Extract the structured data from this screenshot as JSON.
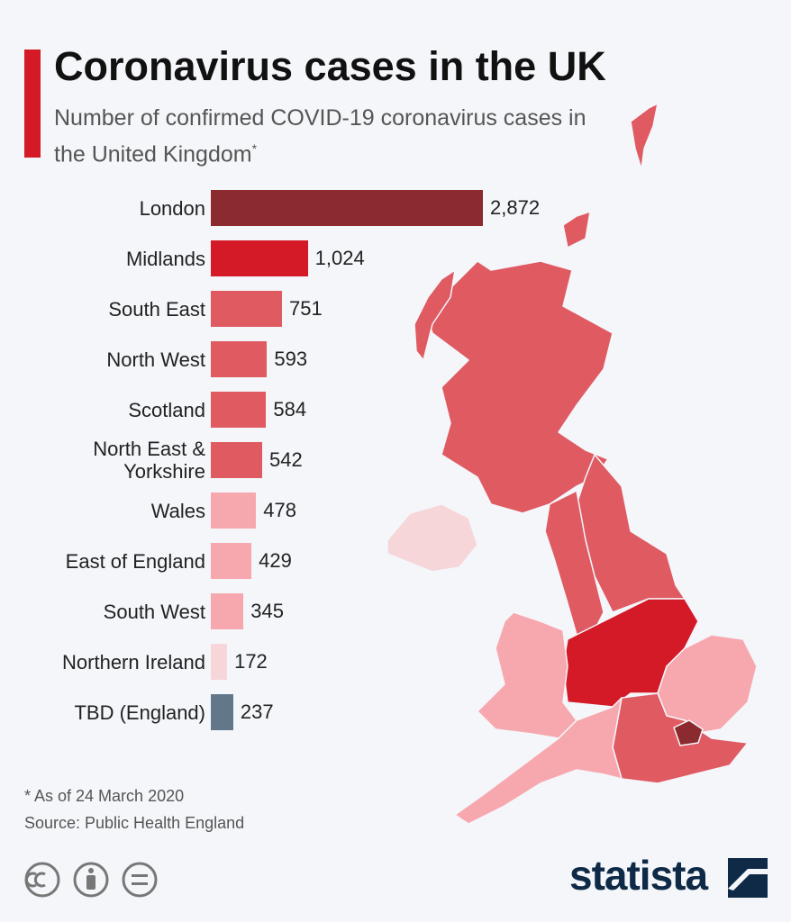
{
  "chart_data": {
    "type": "bar",
    "title": "Coronavirus cases in the UK",
    "subtitle": "Number of confirmed COVID-19 coronavirus cases in the United Kingdom",
    "subtitle_note": "*",
    "categories": [
      "London",
      "Midlands",
      "South East",
      "North West",
      "Scotland",
      "North East & Yorkshire",
      "Wales",
      "East of England",
      "South West",
      "Northern Ireland",
      "TBD (England)"
    ],
    "values": [
      2872,
      1024,
      751,
      593,
      584,
      542,
      478,
      429,
      345,
      172,
      237
    ],
    "value_labels": [
      "2,872",
      "1,024",
      "751",
      "593",
      "584",
      "542",
      "478",
      "429",
      "345",
      "172",
      "237"
    ],
    "colors": [
      "#8b2a2f",
      "#d41a27",
      "#e05a62",
      "#e05a62",
      "#e05a62",
      "#e05a62",
      "#f7a8ae",
      "#f7a8ae",
      "#f7a8ae",
      "#f6d6d9",
      "#62788a"
    ],
    "footnote": "* As of 24 March 2020",
    "source": "Source: Public Health England",
    "brand": "statista"
  }
}
